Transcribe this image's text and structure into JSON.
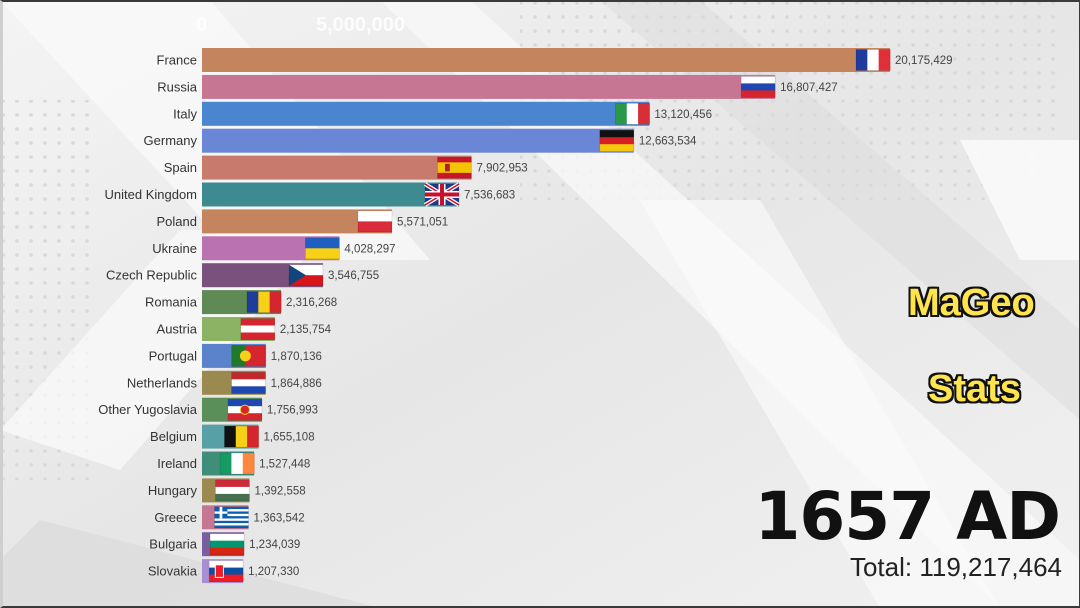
{
  "chart_data": {
    "type": "bar",
    "orientation": "horizontal",
    "x_ticks": [
      "0",
      "5,000,000"
    ],
    "categories": [
      "France",
      "Russia",
      "Italy",
      "Germany",
      "Spain",
      "United Kingdom",
      "Poland",
      "Ukraine",
      "Czech Republic",
      "Romania",
      "Austria",
      "Portugal",
      "Netherlands",
      "Other Yugoslavia",
      "Belgium",
      "Ireland",
      "Hungary",
      "Greece",
      "Bulgaria",
      "Slovakia"
    ],
    "values": [
      20175429,
      16807427,
      13120456,
      12663534,
      7902953,
      7536683,
      5571051,
      4028297,
      3546755,
      2316268,
      2135754,
      1870136,
      1864886,
      1756993,
      1655108,
      1527448,
      1392558,
      1363542,
      1234039,
      1207330
    ],
    "value_labels": [
      "20,175,429",
      "16,807,427",
      "13,120,456",
      "12,663,534",
      "7,902,953",
      "7,536,683",
      "5,571,051",
      "4,028,297",
      "3,546,755",
      "2,316,268",
      "2,135,754",
      "1,870,136",
      "1,864,886",
      "1,756,993",
      "1,655,108",
      "1,527,448",
      "1,392,558",
      "1,363,542",
      "1,234,039",
      "1,207,330"
    ],
    "colors": [
      "#c4845e",
      "#c67592",
      "#4a86cf",
      "#6a86d6",
      "#c87a6c",
      "#3d8b91",
      "#c4845e",
      "#bb72b0",
      "#7a517d",
      "#5f8a55",
      "#8bb363",
      "#5b83cc",
      "#9b8a4f",
      "#5a8f5a",
      "#57a1a6",
      "#3e8e7a",
      "#9b8a4f",
      "#c67592",
      "#7a5fa0",
      "#a88fd4"
    ],
    "flags": [
      "france-flag",
      "russia-flag",
      "italy-flag",
      "germany-flag",
      "spain-flag",
      "uk-flag",
      "poland-flag",
      "ukraine-flag",
      "czech-flag",
      "romania-flag",
      "austria-flag",
      "portugal-flag",
      "netherlands-flag",
      "yugoslavia-flag",
      "belgium-flag",
      "ireland-flag",
      "hungary-flag",
      "greece-flag",
      "bulgaria-flag",
      "slovakia-flag"
    ],
    "xlim": [
      0,
      20175429
    ]
  },
  "brand": {
    "line1": "MaGeo",
    "line2": "Stats"
  },
  "year_label": "1657 AD",
  "total_label": "Total: 119,217,464"
}
